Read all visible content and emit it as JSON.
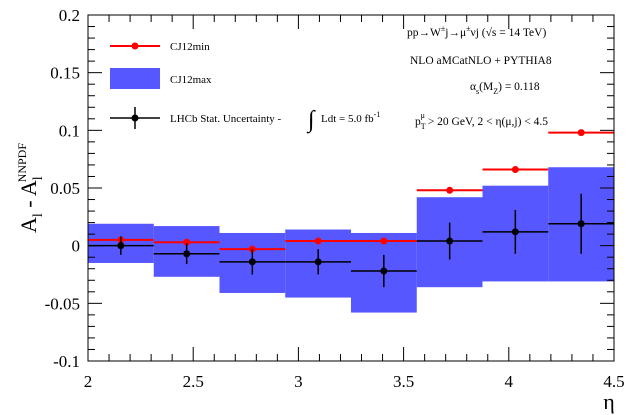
{
  "chart_data": {
    "type": "scatter",
    "xlabel": "η",
    "ylabel_main": "A",
    "ylabel_sub": "l",
    "ylabel_minus": " - ",
    "ylabel_main2": "A",
    "ylabel_sub2": "l",
    "ylabel_sup2": "NNPDF",
    "xlim": [
      2.0,
      4.5
    ],
    "ylim": [
      -0.1,
      0.2
    ],
    "x_ticks": [
      "2",
      "2.5",
      "3",
      "3.5",
      "4",
      "4.5"
    ],
    "y_ticks": [
      "-0.1",
      "-0.05",
      "0",
      "0.05",
      "0.1",
      "0.15",
      "0.2"
    ],
    "bins": [
      [
        2.0,
        2.3125
      ],
      [
        2.3125,
        2.625
      ],
      [
        2.625,
        2.9375
      ],
      [
        2.9375,
        3.25
      ],
      [
        3.25,
        3.5625
      ],
      [
        3.5625,
        3.875
      ],
      [
        3.875,
        4.1875
      ],
      [
        4.1875,
        4.5
      ]
    ],
    "series": [
      {
        "name": "CJ12min",
        "color": "#ff0000",
        "style": "markers+hbar",
        "x": [
          2.156,
          2.469,
          2.781,
          3.094,
          3.406,
          3.719,
          4.031,
          4.344
        ],
        "y": [
          0.005,
          0.003,
          -0.003,
          0.004,
          0.004,
          0.048,
          0.066,
          0.098
        ]
      },
      {
        "name": "CJ12max",
        "color": "#3a3aff",
        "style": "band",
        "low": [
          -0.015,
          -0.027,
          -0.041,
          -0.045,
          -0.058,
          -0.036,
          -0.031,
          -0.031
        ],
        "high": [
          0.019,
          0.017,
          0.011,
          0.014,
          0.011,
          0.042,
          0.052,
          0.068
        ]
      },
      {
        "name": "LHCb Stat. Uncertainty - ",
        "color": "#000000",
        "style": "markers+errorbars",
        "x": [
          2.156,
          2.469,
          2.781,
          3.094,
          3.406,
          3.719,
          4.031,
          4.344
        ],
        "y": [
          0.0,
          -0.007,
          -0.014,
          -0.014,
          -0.022,
          0.004,
          0.012,
          0.019
        ],
        "yerr": [
          0.008,
          0.009,
          0.011,
          0.011,
          0.014,
          0.016,
          0.019,
          0.026
        ]
      }
    ],
    "legend": {
      "position": "top-left",
      "entries": [
        "CJ12min",
        "CJ12max",
        "LHCb Stat. Uncertainty - "
      ],
      "lumi_text": "Ldt =  5.0 fb",
      "lumi_sup": "-1"
    },
    "annotations": {
      "process_a": "pp→W",
      "process_b": "±",
      "process_c": "j→μ",
      "process_d": "±",
      "process_e": "νj (",
      "process_f": "√s",
      "process_g": " = 14 TeV)",
      "generator": "NLO aMCatNLO + PYTHIA8",
      "alpha_a": "α",
      "alpha_b": "s",
      "alpha_c": "(M",
      "alpha_d": "Z",
      "alpha_e": ") = 0.118",
      "cut_a": "p",
      "cut_b": "T",
      "cut_c": "μ",
      "cut_d": " > 20 GeV, 2 < η(μ,j) < 4.5"
    },
    "colors": {
      "band": "#3a3aff",
      "min": "#ff0000",
      "data": "#000000"
    }
  }
}
